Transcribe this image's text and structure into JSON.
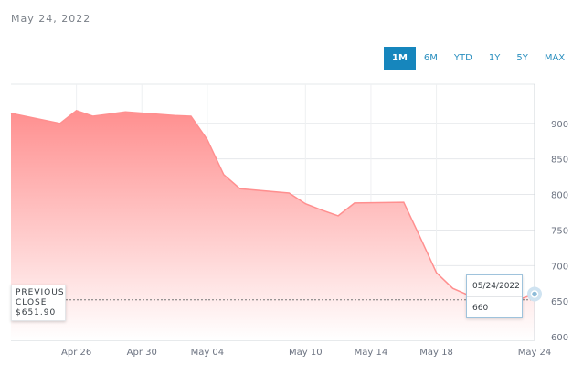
{
  "header": {
    "date": "May 24, 2022"
  },
  "range_buttons": [
    {
      "label": "1M",
      "active": true
    },
    {
      "label": "6M",
      "active": false
    },
    {
      "label": "YTD",
      "active": false
    },
    {
      "label": "1Y",
      "active": false
    },
    {
      "label": "5Y",
      "active": false
    },
    {
      "label": "MAX",
      "active": false
    }
  ],
  "previous_close": {
    "label": "PREVIOUS CLOSE",
    "value": "$651.90"
  },
  "tooltip": {
    "date": "05/24/2022",
    "value": "660"
  },
  "colors": {
    "area_top": "#ff8f8f",
    "area_bottom": "#ffffff",
    "line": "#ff8f8f",
    "accent": "#1686bd"
  },
  "chart_data": {
    "type": "area",
    "x": [
      "2022-04-22",
      "2022-04-25",
      "2022-04-26",
      "2022-04-27",
      "2022-04-28",
      "2022-04-29",
      "2022-05-02",
      "2022-05-03",
      "2022-05-04",
      "2022-05-05",
      "2022-05-06",
      "2022-05-09",
      "2022-05-10",
      "2022-05-11",
      "2022-05-12",
      "2022-05-13",
      "2022-05-16",
      "2022-05-17",
      "2022-05-18",
      "2022-05-19",
      "2022-05-20",
      "2022-05-23",
      "2022-05-24"
    ],
    "y": [
      914,
      900,
      918,
      910,
      913,
      916,
      911,
      910,
      877,
      828,
      808,
      802,
      787,
      778,
      770,
      788,
      789,
      740,
      690,
      668,
      658,
      651.9,
      660
    ],
    "x_ticks": [
      "Apr 26",
      "Apr 30",
      "May 04",
      "May 10",
      "May 14",
      "May 18",
      "May 24"
    ],
    "y_ticks": [
      600,
      650,
      700,
      750,
      800,
      850,
      900
    ],
    "ylim": [
      595,
      955
    ],
    "previous_close_value": 651.9,
    "grid": true
  }
}
